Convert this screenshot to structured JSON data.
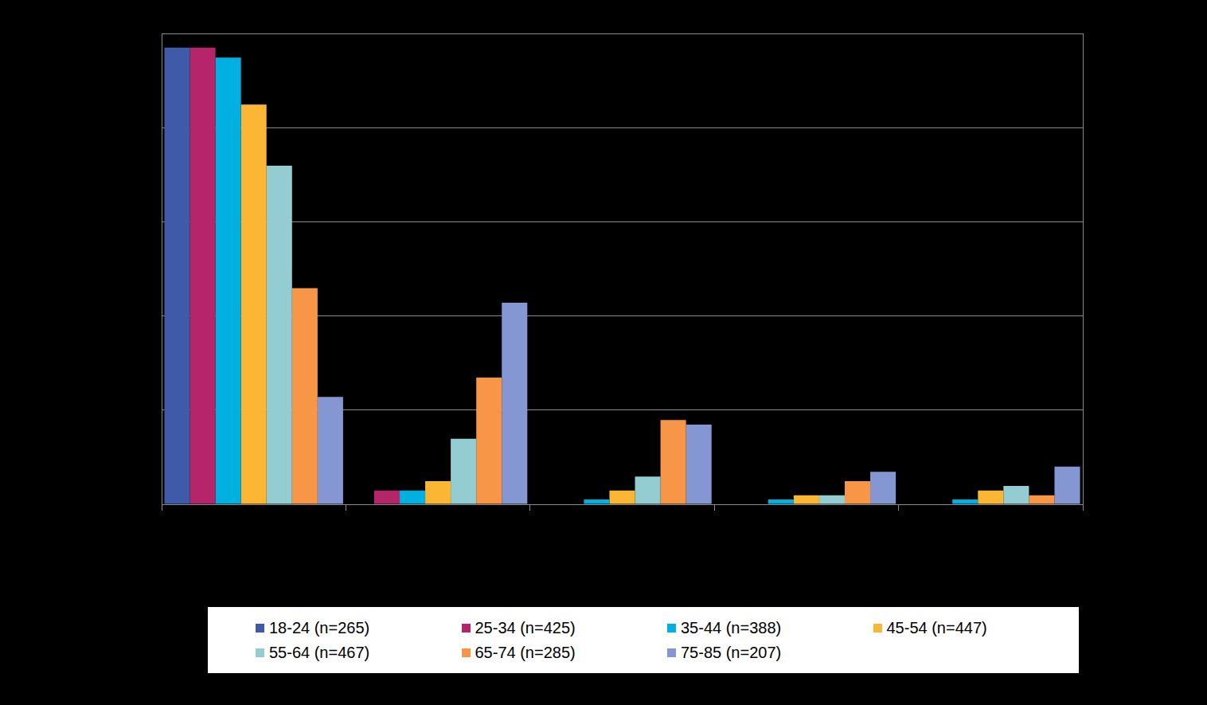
{
  "chart_data": {
    "type": "bar",
    "categories": [
      null,
      null,
      null,
      null,
      null
    ],
    "series": [
      {
        "name": "18-24 (n=265)",
        "color": "#3F5AA8",
        "values": [
          97.0,
          0,
          0,
          0,
          0
        ]
      },
      {
        "name": "25-34 (n=425)",
        "color": "#B5256A",
        "values": [
          97.0,
          2.9,
          0,
          0,
          0
        ]
      },
      {
        "name": "35-44 (n=388)",
        "color": "#00B0E0",
        "values": [
          94.9,
          2.9,
          1.0,
          1.0,
          1.0
        ]
      },
      {
        "name": "45-54 (n=447)",
        "color": "#FBB734",
        "values": [
          84.9,
          4.9,
          2.9,
          1.9,
          2.9
        ]
      },
      {
        "name": "55-64 (n=467)",
        "color": "#93CDD1",
        "values": [
          71.9,
          13.9,
          5.9,
          1.9,
          3.9
        ]
      },
      {
        "name": "65-74 (n=285)",
        "color": "#F79646",
        "values": [
          45.9,
          26.9,
          17.9,
          4.9,
          1.9
        ]
      },
      {
        "name": "75-85 (n=207)",
        "color": "#8497D3",
        "values": [
          22.8,
          42.8,
          16.9,
          6.9,
          8.0
        ]
      }
    ],
    "ylim": [
      0,
      100
    ],
    "yticks": [
      0,
      20,
      40,
      60,
      80,
      100
    ],
    "grid": true,
    "tick_labels": false,
    "legend": "bottom"
  }
}
